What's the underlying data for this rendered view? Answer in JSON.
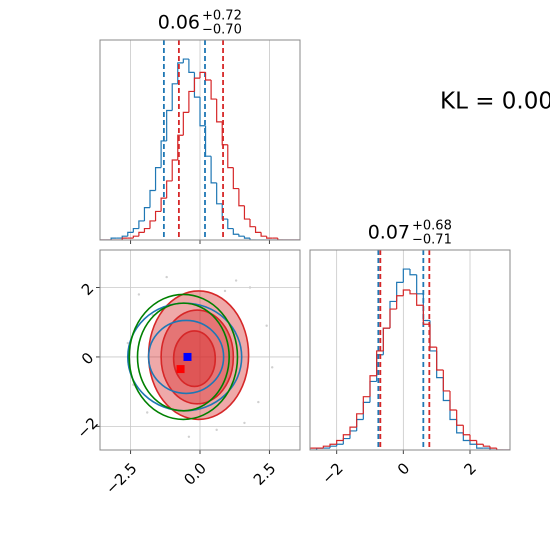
{
  "annotation": "KL = 0.00",
  "chart_data": [
    {
      "type": "histogram",
      "title": {
        "main": "0.06",
        "sup": "+0.72",
        "sub": "−0.70"
      },
      "xlim": [
        -3.6,
        3.6
      ],
      "xticks": [
        -2.5,
        0,
        2.5
      ],
      "ylim": [
        0,
        105
      ],
      "grid": true,
      "bins": [
        -3.6,
        -3.4,
        -3.2,
        -3.0,
        -2.8,
        -2.6,
        -2.4,
        -2.2,
        -2.0,
        -1.8,
        -1.6,
        -1.4,
        -1.2,
        -1.0,
        -0.8,
        -0.6,
        -0.4,
        -0.2,
        0,
        0.2,
        0.4,
        0.6,
        0.8,
        1.0,
        1.2,
        1.4,
        1.6,
        1.8,
        2.0,
        2.2,
        2.4,
        2.6,
        2.8,
        3.0,
        3.2,
        3.4,
        3.6
      ],
      "series": [
        {
          "color": "#1f77b4",
          "quantiles": [
            -1.3,
            0.18
          ],
          "values": [
            0,
            0,
            1,
            1,
            2,
            4,
            6,
            10,
            17,
            26,
            38,
            52,
            68,
            82,
            93,
            95,
            88,
            75,
            60,
            44,
            30,
            19,
            11,
            6,
            3,
            2,
            1,
            0,
            0,
            0,
            0,
            0,
            0,
            0,
            0,
            0
          ]
        },
        {
          "color": "#d62728",
          "quantiles": [
            -0.76,
            0.83
          ],
          "values": [
            0,
            0,
            0,
            0,
            1,
            1,
            2,
            4,
            6,
            10,
            15,
            22,
            31,
            42,
            55,
            67,
            78,
            85,
            88,
            84,
            74,
            62,
            50,
            38,
            27,
            18,
            11,
            7,
            4,
            2,
            1,
            1,
            0,
            0,
            0,
            0
          ]
        }
      ]
    },
    {
      "type": "contour",
      "xlim": [
        -3.6,
        3.6
      ],
      "ylim": [
        -2.68,
        3.08
      ],
      "grid": true,
      "xticks": [
        {
          "value": -2.5,
          "label": "−2.5"
        },
        {
          "value": 0,
          "label": "0.0"
        },
        2.5
      ],
      "yticks": [
        {
          "value": -2,
          "label": "−2"
        },
        0,
        2
      ],
      "points": {
        "color": "#d0d0d0",
        "x": [
          -2.6,
          -2.2,
          -1.9,
          2.4,
          2.1,
          1.8,
          -1.2,
          0.6,
          1.3,
          -2.4,
          2.6,
          -0.4,
          0.9,
          -1.7,
          1.6
        ],
        "y": [
          0.4,
          1.8,
          -1.6,
          0.9,
          -1.3,
          2.0,
          2.3,
          -2.1,
          2.2,
          -0.8,
          -0.3,
          -2.3,
          1.9,
          1.2,
          -1.9
        ]
      },
      "series": [
        {
          "color": "#d62728",
          "fill": true,
          "levels": [
            {
              "cx": -0.05,
              "cy": 0.05,
              "rx": 1.8,
              "ry": 1.85
            },
            {
              "cx": -0.1,
              "cy": 0.0,
              "rx": 1.3,
              "ry": 1.35
            },
            {
              "cx": -0.2,
              "cy": -0.05,
              "rx": 0.75,
              "ry": 0.8
            }
          ]
        },
        {
          "color": "#1f77b4",
          "levels": [
            {
              "cx": -0.55,
              "cy": 0.0,
              "rx": 2.05,
              "ry": 1.55
            },
            {
              "cx": -0.5,
              "cy": 0.0,
              "rx": 1.35,
              "ry": 1.05
            }
          ]
        },
        {
          "color": "#008000",
          "levels": [
            {
              "cx": -0.6,
              "cy": 0.0,
              "rx": 1.95,
              "ry": 1.8
            },
            {
              "cx": -0.6,
              "cy": 0.0,
              "rx": 1.65,
              "ry": 1.55
            }
          ]
        }
      ],
      "markers": [
        {
          "color": "#0000ff",
          "x": -0.45,
          "y": 0.0
        },
        {
          "color": "#ff0000",
          "x": -0.7,
          "y": -0.35
        }
      ]
    },
    {
      "type": "histogram",
      "title": {
        "main": "0.07",
        "sup": "+0.68",
        "sub": "−0.71"
      },
      "xlim": [
        -2.8,
        3.2
      ],
      "xticks": [
        {
          "value": -2,
          "label": "−2"
        },
        0,
        2
      ],
      "ylim": [
        0,
        105
      ],
      "grid": true,
      "bins": [
        -2.8,
        -2.6,
        -2.4,
        -2.2,
        -2.0,
        -1.8,
        -1.6,
        -1.4,
        -1.2,
        -1.0,
        -0.8,
        -0.6,
        -0.4,
        -0.2,
        0,
        0.2,
        0.4,
        0.6,
        0.8,
        1.0,
        1.2,
        1.4,
        1.6,
        1.8,
        2.0,
        2.2,
        2.4,
        2.6,
        2.8,
        3.0,
        3.2
      ],
      "series": [
        {
          "color": "#1f77b4",
          "quantiles": [
            -0.75,
            0.6
          ],
          "values": [
            0,
            1,
            1,
            2,
            3,
            6,
            10,
            16,
            25,
            36,
            50,
            64,
            78,
            88,
            95,
            92,
            82,
            68,
            52,
            38,
            26,
            16,
            9,
            5,
            3,
            1,
            1,
            0,
            0,
            0
          ]
        },
        {
          "color": "#d62728",
          "quantiles": [
            -0.69,
            0.78
          ],
          "values": [
            1,
            1,
            2,
            3,
            5,
            8,
            12,
            19,
            28,
            39,
            52,
            64,
            74,
            81,
            84,
            82,
            76,
            66,
            54,
            42,
            31,
            21,
            13,
            8,
            5,
            3,
            2,
            1,
            0,
            0
          ]
        }
      ]
    }
  ]
}
